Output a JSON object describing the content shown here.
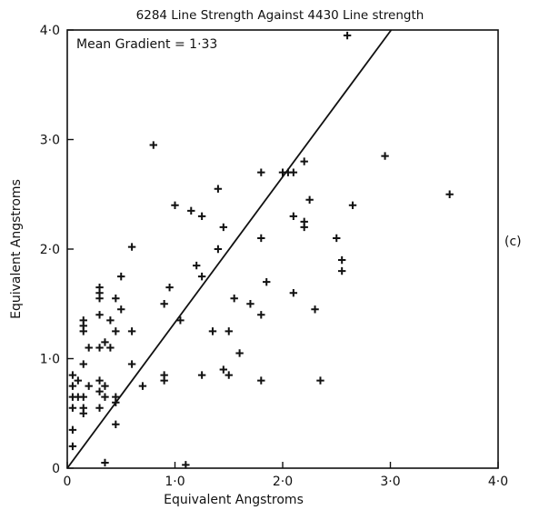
{
  "chart_data": {
    "type": "scatter",
    "title": "6284 Line Strength Against 4430 Line strength",
    "annotation": "Mean Gradient = 1·33",
    "panel_label": "(c)",
    "xlabel": "Equivalent Angstroms",
    "ylabel": "Equivalent Angstroms",
    "xlim": [
      0,
      4
    ],
    "ylim": [
      0,
      4
    ],
    "xticks": [
      {
        "value": 0,
        "label": "0"
      },
      {
        "value": 1,
        "label": "1·0"
      },
      {
        "value": 2,
        "label": "2·0"
      },
      {
        "value": 3,
        "label": "3·0"
      },
      {
        "value": 4,
        "label": "4·0"
      }
    ],
    "yticks": [
      {
        "value": 0,
        "label": "0"
      },
      {
        "value": 1,
        "label": "1·0"
      },
      {
        "value": 2,
        "label": "2·0"
      },
      {
        "value": 3,
        "label": "3·0"
      },
      {
        "value": 4,
        "label": "4·0"
      }
    ],
    "grid": false,
    "marker": "plus",
    "fit_line": {
      "slope": 1.33,
      "intercept": 0
    },
    "points": [
      [
        0.05,
        0.2
      ],
      [
        0.05,
        0.35
      ],
      [
        0.05,
        0.55
      ],
      [
        0.05,
        0.65
      ],
      [
        0.05,
        0.75
      ],
      [
        0.05,
        0.85
      ],
      [
        0.1,
        0.65
      ],
      [
        0.1,
        0.8
      ],
      [
        0.15,
        0.5
      ],
      [
        0.15,
        0.55
      ],
      [
        0.15,
        0.65
      ],
      [
        0.15,
        0.95
      ],
      [
        0.15,
        1.25
      ],
      [
        0.15,
        1.3
      ],
      [
        0.15,
        1.35
      ],
      [
        0.2,
        0.75
      ],
      [
        0.2,
        1.1
      ],
      [
        0.3,
        0.55
      ],
      [
        0.3,
        0.7
      ],
      [
        0.3,
        0.8
      ],
      [
        0.3,
        1.1
      ],
      [
        0.3,
        1.4
      ],
      [
        0.3,
        1.55
      ],
      [
        0.3,
        1.6
      ],
      [
        0.3,
        1.65
      ],
      [
        0.35,
        0.05
      ],
      [
        0.35,
        0.65
      ],
      [
        0.35,
        0.75
      ],
      [
        0.35,
        1.15
      ],
      [
        0.4,
        1.1
      ],
      [
        0.4,
        1.35
      ],
      [
        0.45,
        0.4
      ],
      [
        0.45,
        0.6
      ],
      [
        0.45,
        0.65
      ],
      [
        0.45,
        1.25
      ],
      [
        0.45,
        1.55
      ],
      [
        0.5,
        1.45
      ],
      [
        0.5,
        1.75
      ],
      [
        0.6,
        1.25
      ],
      [
        0.6,
        2.02
      ],
      [
        0.6,
        0.95
      ],
      [
        0.7,
        0.75
      ],
      [
        0.8,
        2.95
      ],
      [
        0.9,
        1.5
      ],
      [
        0.9,
        0.8
      ],
      [
        0.9,
        0.85
      ],
      [
        0.95,
        1.65
      ],
      [
        1.0,
        2.4
      ],
      [
        1.05,
        1.35
      ],
      [
        1.1,
        0.03
      ],
      [
        1.15,
        2.35
      ],
      [
        1.2,
        1.85
      ],
      [
        1.25,
        0.85
      ],
      [
        1.25,
        1.75
      ],
      [
        1.25,
        2.3
      ],
      [
        1.35,
        1.25
      ],
      [
        1.4,
        2.0
      ],
      [
        1.4,
        2.55
      ],
      [
        1.45,
        0.9
      ],
      [
        1.45,
        2.2
      ],
      [
        1.5,
        0.85
      ],
      [
        1.5,
        1.25
      ],
      [
        1.55,
        1.55
      ],
      [
        1.6,
        1.05
      ],
      [
        1.7,
        1.5
      ],
      [
        1.8,
        0.8
      ],
      [
        1.8,
        1.4
      ],
      [
        1.8,
        2.1
      ],
      [
        1.8,
        2.7
      ],
      [
        1.85,
        1.7
      ],
      [
        2.0,
        2.7
      ],
      [
        2.05,
        2.7
      ],
      [
        2.1,
        1.6
      ],
      [
        2.1,
        2.3
      ],
      [
        2.1,
        2.7
      ],
      [
        2.2,
        2.2
      ],
      [
        2.2,
        2.25
      ],
      [
        2.2,
        2.8
      ],
      [
        2.25,
        2.45
      ],
      [
        2.3,
        1.45
      ],
      [
        2.35,
        0.8
      ],
      [
        2.5,
        2.1
      ],
      [
        2.55,
        1.8
      ],
      [
        2.55,
        1.9
      ],
      [
        2.65,
        2.4
      ],
      [
        2.6,
        3.95
      ],
      [
        2.95,
        2.85
      ],
      [
        3.55,
        2.5
      ]
    ]
  }
}
